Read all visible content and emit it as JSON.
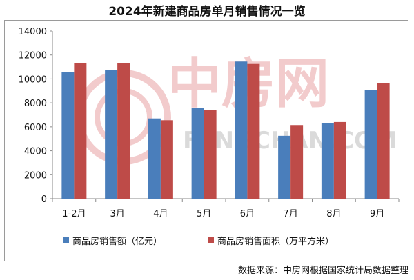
{
  "chart_data": {
    "type": "bar",
    "title": "2024年新建商品房单月销售情况一览",
    "categories": [
      "1-2月",
      "3月",
      "4月",
      "5月",
      "6月",
      "7月",
      "8月",
      "9月"
    ],
    "series": [
      {
        "name": "商品房销售额（亿元）",
        "color": "#4a7ebb",
        "values": [
          10550,
          10750,
          6700,
          7600,
          11450,
          5250,
          6300,
          9100
        ]
      },
      {
        "name": "商品房销售面积（万平方米）",
        "color": "#be4b48",
        "values": [
          11350,
          11300,
          6550,
          7400,
          11250,
          6150,
          6400,
          9650
        ]
      }
    ],
    "ylim": [
      0,
      14000
    ],
    "yticks": [
      0,
      2000,
      4000,
      6000,
      8000,
      10000,
      12000,
      14000
    ],
    "grid": false,
    "legend_position": "bottom"
  },
  "watermark": {
    "cn": "中房网",
    "en": "FANGCHAN.COM",
    "color": "#e9a1a3"
  },
  "source_text": "数据来源：中房网根据国家统计局数据整理"
}
